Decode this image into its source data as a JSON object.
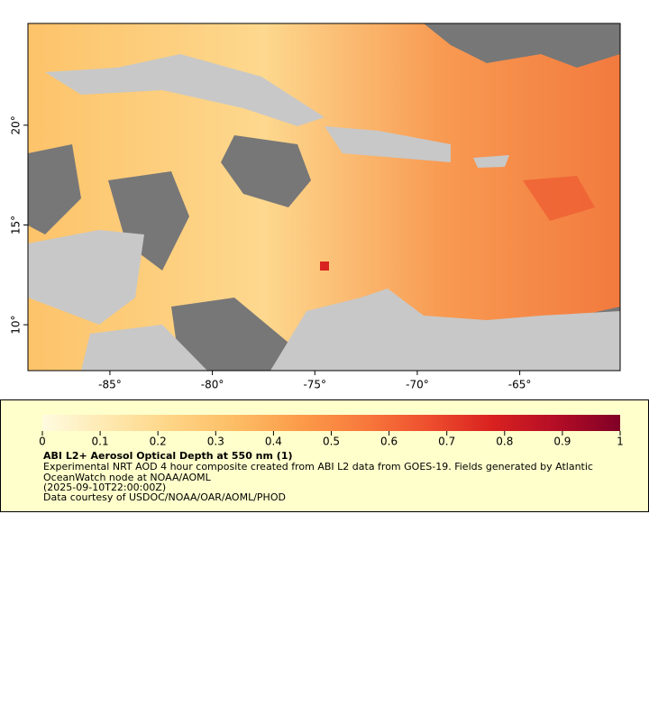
{
  "map": {
    "xlim": [
      -89,
      -60.1
    ],
    "ylim": [
      7.7,
      25.1
    ],
    "xticks": [
      {
        "value": -85,
        "label": "-85°"
      },
      {
        "value": -80,
        "label": "-80°"
      },
      {
        "value": -75,
        "label": "-75°"
      },
      {
        "value": -70,
        "label": "-70°"
      },
      {
        "value": -65,
        "label": "-65°"
      }
    ],
    "yticks": [
      {
        "value": 10,
        "label": "10°"
      },
      {
        "value": 15,
        "label": "15°"
      },
      {
        "value": 20,
        "label": "20°"
      }
    ]
  },
  "colorbar": {
    "lim": [
      0,
      1
    ],
    "ticks": [
      0,
      0.1,
      0.2,
      0.3,
      0.4,
      0.5,
      0.6,
      0.7,
      0.8,
      0.9,
      1
    ],
    "colors": [
      "#fffbe0",
      "#fee9b0",
      "#fed586",
      "#fdbd65",
      "#fc9c4a",
      "#f87a3c",
      "#ee4f2e",
      "#d92220",
      "#b40d26",
      "#800026"
    ]
  },
  "legend": {
    "title": "ABI L2+ Aerosol Optical Depth at 550 nm (1)",
    "lines": [
      "Experimental NRT AOD 4 hour composite created from ABI L2 data from GOES-19. Fields generated by Atlantic",
      "OceanWatch node at NOAA/AOML",
      "(2025-09-10T22:00:00Z)",
      "Data courtesy of USDOC/NOAA/OAR/AOML/PHOD"
    ]
  }
}
